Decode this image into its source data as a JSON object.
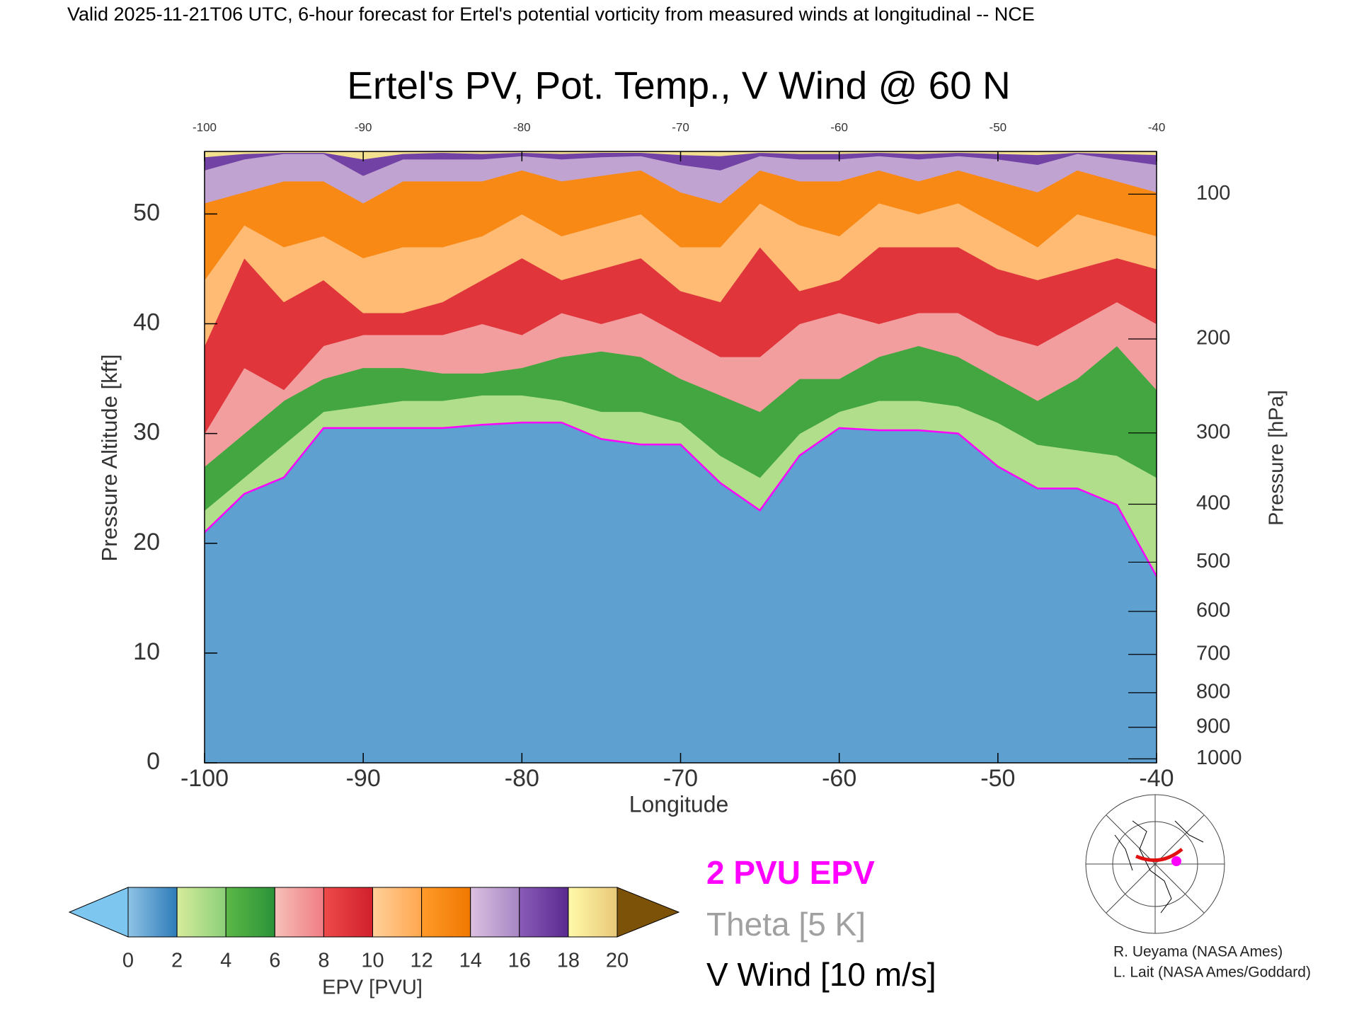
{
  "header": "Valid 2025-11-21T06 UTC, 6-hour forecast for Ertel's potential vorticity from measured winds at longitudinal -- NCE",
  "chart_data": {
    "type": "cross-section",
    "title": "Ertel's PV, Pot. Temp., V Wind @ 60 N",
    "x_label": "Longitude",
    "y_label": "Pressure Altitude [kft]",
    "y2_label": "Pressure [hPa]",
    "y2scale": "pressure-altitude",
    "xlim": [
      -100,
      -40
    ],
    "ylim": [
      0,
      55.7
    ],
    "xticks": [
      -100,
      -90,
      -80,
      -70,
      -60,
      -50,
      -40
    ],
    "yticks": [
      0,
      10,
      20,
      30,
      40,
      50
    ],
    "y2ticks": [
      100,
      200,
      300,
      400,
      500,
      600,
      700,
      800,
      900,
      1000
    ],
    "x": [
      -100,
      -97.5,
      -95,
      -92.5,
      -90,
      -87.5,
      -85,
      -82.5,
      -80,
      -77.5,
      -75,
      -72.5,
      -70,
      -67.5,
      -65,
      -62.5,
      -60,
      -57.5,
      -55,
      -52.5,
      -50,
      -47.5,
      -45,
      -42.5,
      -40
    ],
    "contours": [
      {
        "level": 2,
        "values": [
          21,
          24.5,
          26,
          30.5,
          30.5,
          30.5,
          30.5,
          30.8,
          31,
          31,
          29.5,
          29,
          29,
          25.5,
          23,
          28,
          30.5,
          30.3,
          30.3,
          30,
          27,
          25,
          25,
          23.5,
          17
        ]
      },
      {
        "level": 4,
        "values": [
          23,
          26,
          29,
          32,
          32.5,
          33,
          33,
          33.5,
          33.5,
          33,
          32,
          32,
          31,
          28,
          26,
          30,
          32,
          33,
          33,
          32.5,
          31,
          29,
          28.5,
          28,
          26
        ]
      },
      {
        "level": 6,
        "values": [
          27,
          30,
          33,
          35,
          36,
          36,
          35.5,
          35.5,
          36,
          37,
          37.5,
          37,
          35,
          33.5,
          32,
          35,
          35,
          37,
          38,
          37,
          35,
          33,
          35,
          38,
          34
        ]
      },
      {
        "level": 8,
        "values": [
          30,
          36,
          34,
          38,
          39,
          39,
          39,
          40,
          39,
          41,
          40,
          41,
          39,
          37,
          37,
          40,
          41,
          40,
          41,
          41,
          39,
          38,
          40,
          42,
          40
        ]
      },
      {
        "level": 10,
        "values": [
          38,
          46,
          42,
          44,
          41,
          41,
          42,
          44,
          46,
          44,
          45,
          46,
          43,
          42,
          47,
          43,
          44,
          47,
          47,
          47,
          45,
          44,
          45,
          46,
          45
        ]
      },
      {
        "level": 12,
        "values": [
          44,
          49,
          47,
          48,
          46,
          47,
          47,
          48,
          50,
          48,
          49,
          50,
          47,
          47,
          51,
          49,
          48,
          51,
          50,
          51,
          49,
          47,
          50,
          49,
          48
        ]
      },
      {
        "level": 14,
        "values": [
          51,
          52,
          53,
          53,
          51,
          53,
          53,
          53,
          54,
          53,
          53.5,
          54,
          52,
          51,
          54,
          53,
          53,
          54,
          53,
          54,
          53,
          52,
          54,
          53,
          52
        ]
      },
      {
        "level": 16,
        "values": [
          54,
          55,
          55.5,
          55.5,
          53.5,
          55,
          55,
          55,
          55.3,
          55,
          55.2,
          55.3,
          54.5,
          54,
          55.3,
          55,
          55,
          55.3,
          55,
          55.3,
          55,
          54.5,
          55.5,
          55,
          54.5
        ]
      },
      {
        "level": 18,
        "values": [
          55.2,
          55.5,
          55.6,
          55.6,
          55,
          55.5,
          55.6,
          55.5,
          55.6,
          55.5,
          55.6,
          55.6,
          55.4,
          55.3,
          55.6,
          55.5,
          55.5,
          55.6,
          55.5,
          55.6,
          55.5,
          55.4,
          55.6,
          55.5,
          55.4
        ]
      }
    ],
    "legend": [
      {
        "text": "2 PVU EPV",
        "color": "#ff00ff"
      },
      {
        "text": "Theta [5 K]",
        "color": "#a0a0a0"
      },
      {
        "text": "V Wind [10 m/s]",
        "color": "#000000"
      }
    ],
    "colorbar": {
      "label": "EPV [PVU]",
      "ticks": [
        0,
        2,
        4,
        6,
        8,
        10,
        12,
        14,
        16,
        18,
        20
      ],
      "colors": [
        [
          "#8fc3e6",
          "#2d7cb8"
        ],
        [
          "#d6ec9c",
          "#8ccf78"
        ],
        [
          "#5cb847",
          "#2a9338"
        ],
        [
          "#f6c0b8",
          "#f07c84"
        ],
        [
          "#ee4a4a",
          "#d0202c"
        ],
        [
          "#ffd09a",
          "#ffa64e"
        ],
        [
          "#ff9a2a",
          "#f07800"
        ],
        [
          "#dcc0e0",
          "#a686c4"
        ],
        [
          "#8a5cb8",
          "#5a2a90"
        ],
        [
          "#fffaa8",
          "#e8c878"
        ]
      ],
      "under": "#7cc6f0",
      "over": "#7c5208"
    }
  },
  "credits": [
    "R. Ueyama (NASA Ames)",
    "L. Lait (NASA Ames/Goddard)"
  ]
}
